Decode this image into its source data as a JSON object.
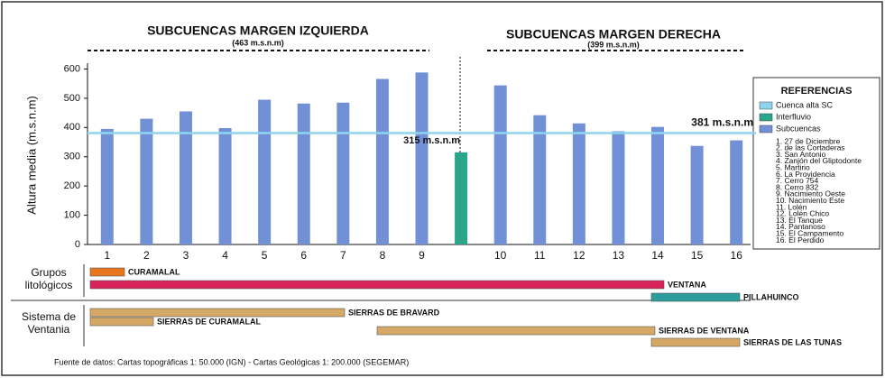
{
  "chart_data": {
    "type": "bar",
    "header_left": {
      "title": "SUBCUENCAS MARGEN IZQUIERDA",
      "subtitle": "(463 m.s.n.m)"
    },
    "header_right": {
      "title": "SUBCUENCAS MARGEN DERECHA",
      "subtitle": "(399 m.s.n.m)"
    },
    "y_label": "Altura media (m.s.n.m)",
    "categories": [
      "1",
      "2",
      "3",
      "4",
      "5",
      "6",
      "7",
      "8",
      "9",
      null,
      "10",
      "11",
      "12",
      "13",
      "14",
      "15",
      "16"
    ],
    "series": [
      {
        "name": "Subcuencas",
        "color": "#7190d6",
        "values": [
          395,
          430,
          455,
          398,
          495,
          482,
          485,
          566,
          588,
          null,
          544,
          442,
          414,
          387,
          402,
          337,
          356
        ]
      },
      {
        "name": "Interfluvio",
        "color": "#2aa58a",
        "values": [
          null,
          null,
          null,
          null,
          null,
          null,
          null,
          null,
          null,
          315,
          null,
          null,
          null,
          null,
          null,
          null,
          null
        ],
        "value_labels": [
          null,
          null,
          null,
          null,
          null,
          null,
          null,
          null,
          null,
          "315 m.s.n.m",
          null,
          null,
          null,
          null,
          null,
          null,
          null
        ]
      }
    ],
    "reference_line": {
      "name": "Cuenca alta SC",
      "value": 381,
      "label": "381 m.s.n.m",
      "color": "#8fd4ef"
    },
    "ylim": [
      0,
      620
    ],
    "yticks": [
      0,
      100,
      200,
      300,
      400,
      500,
      600
    ],
    "legend": {
      "title": "REFERENCIAS",
      "position": "right",
      "items": [
        "1. 27 de Diciembre",
        "2. de las Cortaderas",
        "3. San Antonio",
        "4. Zanjón del Gliptodonte",
        "5. Martirio",
        "6. La Providencia",
        "7. Cerro 754",
        "8. Cerro 832",
        "9. Nacimiento Oeste",
        "10. Nacimiento Este",
        "11. Lolén",
        "12. Lolén Chico",
        "13. El Tanque",
        "14. Pantanoso",
        "15. El Campamento",
        "16. El Perdido"
      ]
    },
    "lithology": {
      "groups_label": [
        "Grupos",
        "litológicos"
      ],
      "groups": [
        "CURAMALAL",
        "VENTANA",
        "PILLAHUINCO"
      ],
      "system_label": [
        "Sistema de",
        "Ventania"
      ],
      "systems": [
        "SIERRAS DE BRAVARD",
        "SIERRAS DE CURAMALAL",
        "SIERRAS DE VENTANA",
        "SIERRAS DE LAS TUNAS"
      ]
    },
    "source": "Fuente de datos:  Cartas topográficas  1: 50.000 (IGN) - Cartas Geológicas 1: 200.000 (SEGEMAR)"
  }
}
